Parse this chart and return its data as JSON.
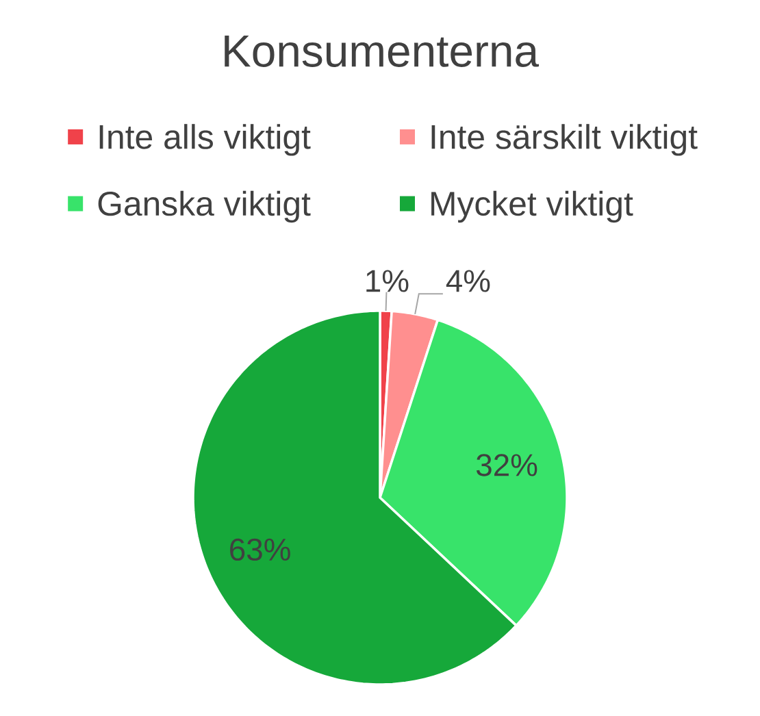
{
  "chart_data": {
    "type": "pie",
    "title": "Konsumenterna",
    "categories": [
      "Inte alls viktigt",
      "Inte särskilt viktigt",
      "Ganska viktigt",
      "Mycket viktigt"
    ],
    "values": [
      1,
      4,
      32,
      63
    ],
    "colors": [
      "#f0424a",
      "#ff8f8f",
      "#38e36a",
      "#16a83a"
    ],
    "value_labels": [
      "1%",
      "4%",
      "32%",
      "63%"
    ],
    "legend": "top"
  }
}
